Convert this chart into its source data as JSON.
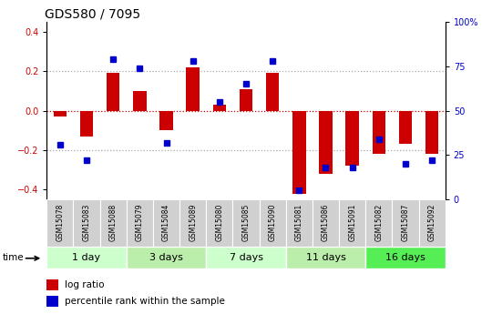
{
  "title": "GDS580 / 7095",
  "samples": [
    "GSM15078",
    "GSM15083",
    "GSM15088",
    "GSM15079",
    "GSM15084",
    "GSM15089",
    "GSM15080",
    "GSM15085",
    "GSM15090",
    "GSM15081",
    "GSM15086",
    "GSM15091",
    "GSM15082",
    "GSM15087",
    "GSM15092"
  ],
  "log_ratio": [
    -0.03,
    -0.13,
    0.19,
    0.1,
    -0.1,
    0.22,
    0.03,
    0.11,
    0.19,
    -0.42,
    -0.32,
    -0.28,
    -0.22,
    -0.17,
    -0.22
  ],
  "percentile_rank": [
    31,
    22,
    79,
    74,
    32,
    78,
    55,
    65,
    78,
    5,
    18,
    18,
    34,
    20,
    22
  ],
  "groups": [
    {
      "label": "1 day",
      "indices": [
        0,
        1,
        2
      ],
      "color": "#ccffcc"
    },
    {
      "label": "3 days",
      "indices": [
        3,
        4,
        5
      ],
      "color": "#bbeeaa"
    },
    {
      "label": "7 days",
      "indices": [
        6,
        7,
        8
      ],
      "color": "#ccffcc"
    },
    {
      "label": "11 days",
      "indices": [
        9,
        10,
        11
      ],
      "color": "#bbeeaa"
    },
    {
      "label": "16 days",
      "indices": [
        12,
        13,
        14
      ],
      "color": "#55ee55"
    }
  ],
  "ylim": [
    -0.45,
    0.45
  ],
  "yticks_left": [
    -0.4,
    -0.2,
    0.0,
    0.2,
    0.4
  ],
  "yticks_right": [
    0,
    25,
    50,
    75,
    100
  ],
  "bar_color": "#cc0000",
  "dot_color": "#0000cc",
  "zero_line_color": "#cc0000",
  "grid_color": "#aaaaaa",
  "background_color": "#ffffff",
  "title_fontsize": 10,
  "tick_fontsize": 7,
  "label_fontsize": 7.5,
  "sample_label_fontsize": 5.5,
  "group_label_fontsize": 8
}
